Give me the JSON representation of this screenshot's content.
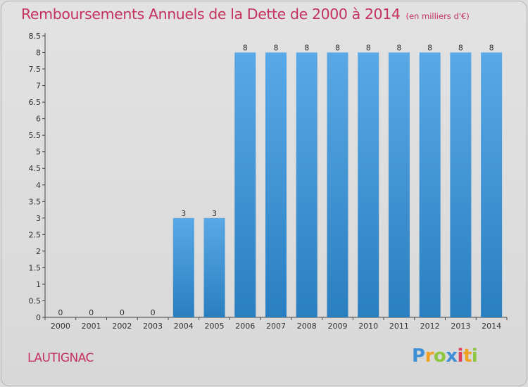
{
  "header": {
    "title": "Remboursements Annuels de la Dette de 2000 à 2014",
    "unit": "(en milliers d'€)"
  },
  "footer": {
    "commune": "LAUTIGNAC",
    "logo": {
      "text": "Proxiti"
    }
  },
  "colors": {
    "accent": "#c4325f",
    "bar_top": "#5aa8e6",
    "bar_bottom": "#2a7fc0",
    "background": "#dcdcdc"
  },
  "chart_data": {
    "type": "bar",
    "title": "Remboursements Annuels de la Dette de 2000 à 2014",
    "xlabel": "",
    "ylabel": "",
    "categories": [
      "2000",
      "2001",
      "2002",
      "2003",
      "2004",
      "2005",
      "2006",
      "2007",
      "2008",
      "2009",
      "2010",
      "2011",
      "2012",
      "2013",
      "2014"
    ],
    "values": [
      0,
      0,
      0,
      0,
      3,
      3,
      8,
      8,
      8,
      8,
      8,
      8,
      8,
      8,
      8
    ],
    "data_labels": [
      "0",
      "0",
      "0",
      "0",
      "3",
      "3",
      "8",
      "8",
      "8",
      "8",
      "8",
      "8",
      "8",
      "8",
      "8"
    ],
    "ylim": [
      0,
      8.5
    ],
    "yticks": [
      0,
      0.5,
      1,
      1.5,
      2,
      2.5,
      3,
      3.5,
      4,
      4.5,
      5,
      5.5,
      6,
      6.5,
      7,
      7.5,
      8,
      8.5
    ],
    "ytick_labels": [
      "0",
      "0.5",
      "1",
      "1.5",
      "2",
      "2.5",
      "3",
      "3.5",
      "4",
      "4.5",
      "5",
      "5.5",
      "6",
      "6.5",
      "7",
      "7.5",
      "8",
      "8.5"
    ],
    "grid": false,
    "legend": "none"
  }
}
